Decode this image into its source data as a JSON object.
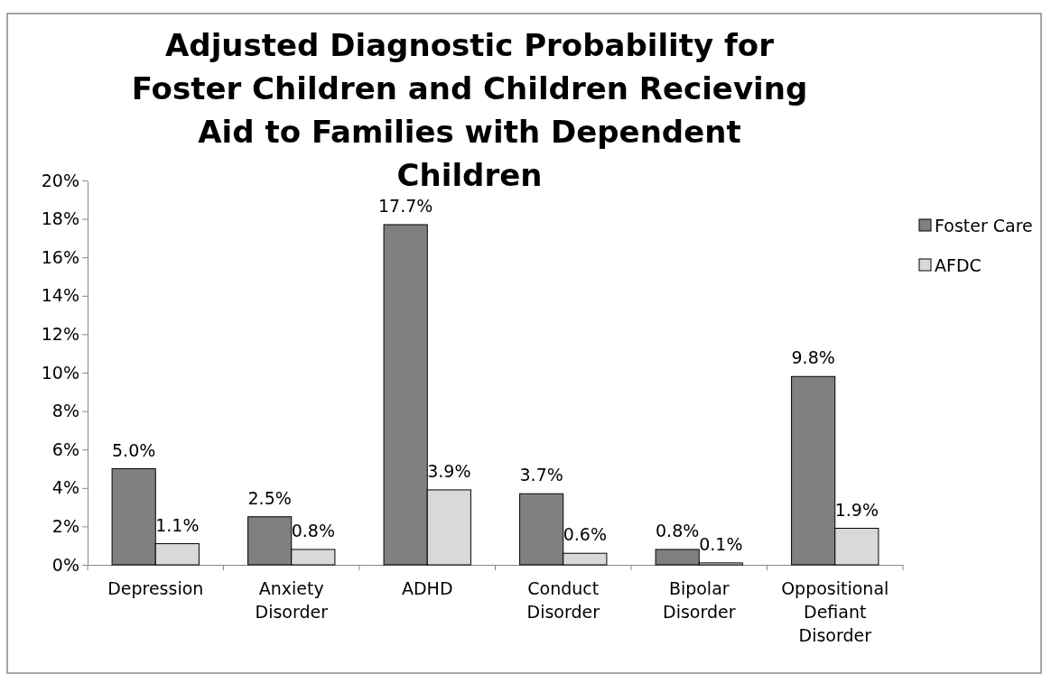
{
  "chart_data": {
    "type": "bar",
    "title": "Adjusted Diagnostic Probability for Foster Children and Children Recieving Aid to Families with Dependent Children",
    "categories": [
      "Depression",
      "Anxiety Disorder",
      "ADHD",
      "Conduct Disorder",
      "Bipolar Disorder",
      "Oppositional Defiant Disorder"
    ],
    "series": [
      {
        "name": "Foster Care",
        "color": "#808080",
        "values": [
          5.0,
          2.5,
          17.7,
          3.7,
          0.8,
          9.8
        ],
        "value_labels": [
          "5.0%",
          "2.5%",
          "17.7%",
          "3.7%",
          "0.8%",
          "9.8%"
        ]
      },
      {
        "name": "AFDC",
        "color": "#d9d9d9",
        "values": [
          1.1,
          0.8,
          3.9,
          0.6,
          0.1,
          1.9
        ],
        "value_labels": [
          "1.1%",
          "0.8%",
          "3.9%",
          "0.6%",
          "0.1%",
          "1.9%"
        ]
      }
    ],
    "ylim": [
      0,
      20
    ],
    "yticks": [
      {
        "value": 0,
        "label": "0%"
      },
      {
        "value": 2,
        "label": "2%"
      },
      {
        "value": 4,
        "label": "4%"
      },
      {
        "value": 6,
        "label": "6%"
      },
      {
        "value": 8,
        "label": "8%"
      },
      {
        "value": 10,
        "label": "10%"
      },
      {
        "value": 12,
        "label": "12%"
      },
      {
        "value": 14,
        "label": "14%"
      },
      {
        "value": 16,
        "label": "16%"
      },
      {
        "value": 18,
        "label": "18%"
      },
      {
        "value": 20,
        "label": "20%"
      }
    ],
    "grid": false,
    "legend": "right"
  }
}
